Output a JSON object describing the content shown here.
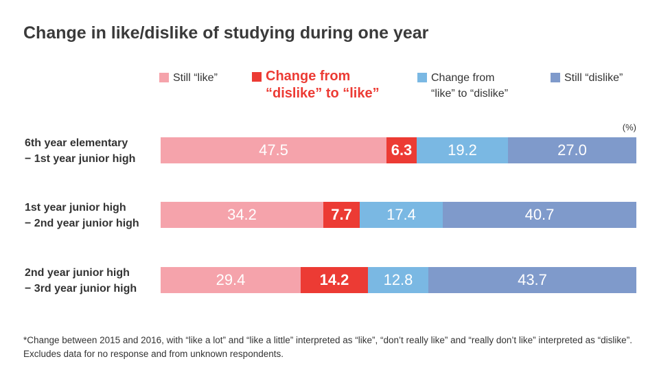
{
  "chart_data": {
    "type": "bar",
    "orientation": "horizontal",
    "stacked": true,
    "title": "Change in like/dislike of studying during one year",
    "unit": "(%)",
    "categories": [
      "6th year elementary\n− 1st year junior high",
      "1st year junior high\n− 2nd year junior high",
      "2nd year junior high\n− 3rd year junior high"
    ],
    "series": [
      {
        "name": "Still “like”",
        "color": "#f5a3ab",
        "bold": false,
        "values": [
          47.5,
          34.2,
          29.4
        ]
      },
      {
        "name": "Change from\n“dislike” to “like”",
        "color": "#ec3b34",
        "bold": true,
        "values": [
          6.3,
          7.7,
          14.2
        ]
      },
      {
        "name": "Change from\n“like” to “dislike”",
        "color": "#7ab8e3",
        "bold": false,
        "values": [
          19.2,
          17.4,
          12.8
        ]
      },
      {
        "name": "Still “dislike”",
        "color": "#7f9acb",
        "bold": false,
        "values": [
          27.0,
          40.7,
          43.7
        ]
      }
    ],
    "xlim": [
      0,
      100
    ],
    "legend_position": "top",
    "grid": false
  },
  "footnote": "*Change between 2015 and 2016, with “like a lot” and “like a little” interpreted as “like”, “don’t really like” and “really don’t like” interpreted as “dislike”. Excludes data for no response and from unknown respondents."
}
